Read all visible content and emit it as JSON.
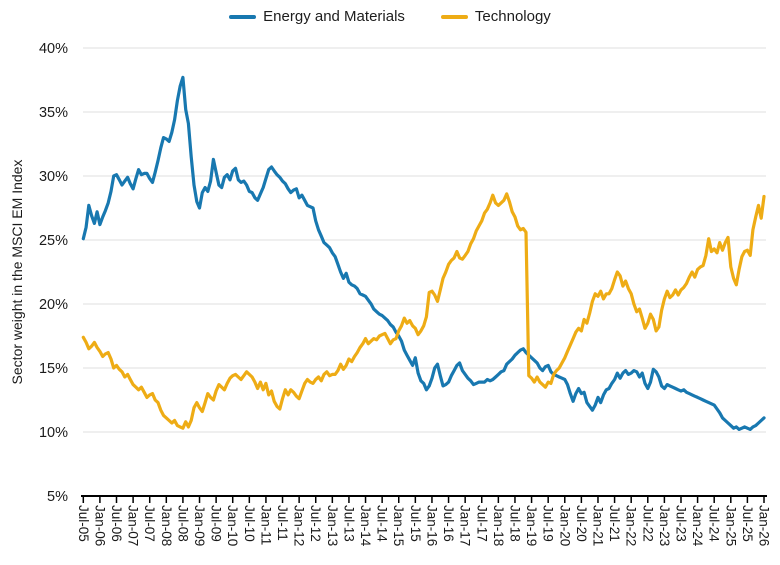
{
  "chart_data": {
    "type": "line",
    "title": "",
    "xlabel": "",
    "ylabel": "Sector weight in the MSCI EM Index",
    "ylim": [
      5,
      40
    ],
    "ytick_values": [
      40,
      35,
      30,
      25,
      20,
      15,
      10,
      5
    ],
    "ytick_suffix": "%",
    "grid": "horizontal-light",
    "legend_position": "top-center",
    "x_range": {
      "start": "Jul-2005",
      "end": "Jan-2026",
      "frequency": "monthly",
      "count": 247
    },
    "xtick_interval_months": 6,
    "xtick_labels": [
      "Jul-05",
      "Jan-06",
      "Jul-06",
      "Jan-07",
      "Jul-07",
      "Jan-08",
      "Jul-08",
      "Jan-09",
      "Jul-09",
      "Jan-10",
      "Jul-10",
      "Jan-11",
      "Jul-11",
      "Jan-12",
      "Jul-12",
      "Jan-13",
      "Jul-13",
      "Jan-14",
      "Jul-14",
      "Jan-15",
      "Jul-15",
      "Jan-16",
      "Jul-16",
      "Jan-17",
      "Jul-17",
      "Jan-18",
      "Jul-18",
      "Jan-19",
      "Jul-19",
      "Jan-20",
      "Jul-20",
      "Jan-21",
      "Jul-21",
      "Jan-22",
      "Jul-22",
      "Jan-23",
      "Jul-23",
      "Jan-24",
      "Jul-24",
      "Jan-25",
      "Jul-25",
      "Jan-26"
    ],
    "series": [
      {
        "name": "Energy and Materials",
        "color": "#1878B0",
        "values": [
          25.1,
          26.0,
          27.7,
          26.9,
          26.3,
          27.2,
          26.2,
          26.8,
          27.3,
          27.9,
          28.8,
          30.0,
          30.1,
          29.7,
          29.3,
          29.6,
          29.9,
          29.4,
          29.0,
          29.8,
          30.5,
          30.1,
          30.2,
          30.2,
          29.8,
          29.5,
          30.3,
          31.2,
          32.2,
          33.0,
          32.9,
          32.7,
          33.4,
          34.4,
          35.9,
          37.0,
          37.7,
          35.2,
          34.1,
          31.5,
          29.3,
          28.0,
          27.5,
          28.7,
          29.1,
          28.8,
          29.6,
          31.3,
          30.3,
          29.3,
          29.1,
          29.9,
          30.1,
          29.7,
          30.4,
          30.6,
          29.7,
          29.5,
          29.6,
          29.3,
          28.8,
          28.7,
          28.3,
          28.1,
          28.6,
          29.1,
          29.8,
          30.5,
          30.7,
          30.4,
          30.1,
          29.9,
          29.6,
          29.4,
          29.0,
          28.7,
          28.9,
          29.0,
          28.3,
          28.5,
          28.1,
          27.7,
          27.6,
          27.5,
          26.5,
          25.8,
          25.3,
          24.8,
          24.6,
          24.4,
          24.0,
          23.7,
          23.1,
          22.5,
          22.0,
          22.4,
          21.7,
          21.5,
          21.4,
          21.2,
          20.8,
          20.7,
          20.6,
          20.3,
          20.0,
          19.6,
          19.4,
          19.2,
          19.1,
          18.9,
          18.7,
          18.4,
          18.2,
          17.8,
          17.5,
          17.1,
          16.4,
          16.0,
          15.6,
          15.2,
          15.8,
          14.6,
          14.0,
          13.8,
          13.3,
          13.6,
          14.2,
          15.0,
          15.3,
          14.4,
          13.6,
          13.7,
          13.9,
          14.4,
          14.8,
          15.2,
          15.4,
          14.8,
          14.5,
          14.2,
          14.0,
          13.7,
          13.8,
          13.9,
          13.9,
          13.9,
          14.1,
          14.0,
          14.1,
          14.3,
          14.5,
          14.7,
          14.8,
          15.3,
          15.5,
          15.7,
          16.0,
          16.2,
          16.4,
          16.5,
          16.2,
          16.0,
          15.8,
          15.6,
          15.4,
          15.0,
          14.8,
          15.1,
          15.2,
          14.7,
          14.5,
          14.4,
          14.3,
          14.2,
          14.1,
          13.7,
          13.0,
          12.4,
          13.0,
          13.4,
          13.0,
          13.1,
          12.3,
          12.0,
          11.7,
          12.1,
          12.7,
          12.3,
          12.9,
          13.3,
          13.4,
          13.8,
          14.1,
          14.6,
          14.2,
          14.6,
          14.8,
          14.5,
          14.6,
          14.8,
          14.7,
          14.3,
          14.6,
          13.8,
          13.4,
          13.9,
          14.9,
          14.7,
          14.3,
          13.6,
          13.4,
          13.7,
          13.6,
          13.5,
          13.4,
          13.3,
          13.2,
          13.3,
          13.1,
          13.0,
          12.9,
          12.8,
          12.7,
          12.6,
          12.5,
          12.4,
          12.3,
          12.2,
          12.1,
          11.8,
          11.5,
          11.1,
          10.9,
          10.7,
          10.5,
          10.3,
          10.4,
          10.2,
          10.3,
          10.4,
          10.3,
          10.2,
          10.4,
          10.5,
          10.7,
          10.9,
          11.1
        ]
      },
      {
        "name": "Technology",
        "color": "#EEAC15",
        "values": [
          17.4,
          17.0,
          16.5,
          16.7,
          17.0,
          16.6,
          16.3,
          15.9,
          16.1,
          16.2,
          15.7,
          15.0,
          15.2,
          14.9,
          14.7,
          14.3,
          14.5,
          14.1,
          13.7,
          13.5,
          13.3,
          13.5,
          13.1,
          12.7,
          12.9,
          13.0,
          12.5,
          12.3,
          11.7,
          11.3,
          11.1,
          10.9,
          10.7,
          10.9,
          10.5,
          10.4,
          10.3,
          10.8,
          10.4,
          10.9,
          11.9,
          12.3,
          11.9,
          11.6,
          12.3,
          13.0,
          12.7,
          12.5,
          13.2,
          13.7,
          13.5,
          13.3,
          13.8,
          14.2,
          14.4,
          14.5,
          14.3,
          14.1,
          14.4,
          14.7,
          14.5,
          14.3,
          13.9,
          13.4,
          13.9,
          13.3,
          13.8,
          12.9,
          13.2,
          12.4,
          12.0,
          11.8,
          12.6,
          13.3,
          12.9,
          13.3,
          13.1,
          12.8,
          12.6,
          13.2,
          13.8,
          14.1,
          13.9,
          13.8,
          14.1,
          14.3,
          14.0,
          14.5,
          14.7,
          14.4,
          14.5,
          14.5,
          14.8,
          15.3,
          14.9,
          15.2,
          15.7,
          15.5,
          15.9,
          16.2,
          16.6,
          16.9,
          17.3,
          16.9,
          17.1,
          17.3,
          17.2,
          17.5,
          17.6,
          17.7,
          17.3,
          16.9,
          17.2,
          17.3,
          17.9,
          18.3,
          18.9,
          18.5,
          18.7,
          18.3,
          18.1,
          17.6,
          17.9,
          18.3,
          19.0,
          20.9,
          21.0,
          20.7,
          20.2,
          21.1,
          22.0,
          22.5,
          23.1,
          23.4,
          23.6,
          24.1,
          23.6,
          23.5,
          23.8,
          24.1,
          24.7,
          25.1,
          25.7,
          26.1,
          26.5,
          27.1,
          27.4,
          27.9,
          28.5,
          27.9,
          27.7,
          27.9,
          28.1,
          28.6,
          28.0,
          27.2,
          26.8,
          26.1,
          25.8,
          25.9,
          25.6,
          14.4,
          14.2,
          13.9,
          14.3,
          13.9,
          13.7,
          13.5,
          13.9,
          13.8,
          14.5,
          14.8,
          15.0,
          15.4,
          15.8,
          16.3,
          16.8,
          17.3,
          17.8,
          18.1,
          17.9,
          18.8,
          18.5,
          19.3,
          20.2,
          20.8,
          20.6,
          21.0,
          20.4,
          20.8,
          20.8,
          21.2,
          21.9,
          22.5,
          22.2,
          21.4,
          21.8,
          21.2,
          20.8,
          20.0,
          19.4,
          19.6,
          18.9,
          18.1,
          18.5,
          19.2,
          18.8,
          17.9,
          18.2,
          19.5,
          20.4,
          21.0,
          20.5,
          20.7,
          21.1,
          20.7,
          21.1,
          21.3,
          21.6,
          22.1,
          22.5,
          22.1,
          22.7,
          22.9,
          23.0,
          23.8,
          25.1,
          24.1,
          24.3,
          24.0,
          24.8,
          24.2,
          24.8,
          25.2,
          22.9,
          22.0,
          21.5,
          22.7,
          23.7,
          24.1,
          24.2,
          23.8,
          25.8,
          26.8,
          27.7,
          26.7,
          28.4
        ]
      }
    ]
  },
  "colors": {
    "grid": "#E5E5E5",
    "axis": "#000000",
    "text": "#1A1A1A"
  }
}
